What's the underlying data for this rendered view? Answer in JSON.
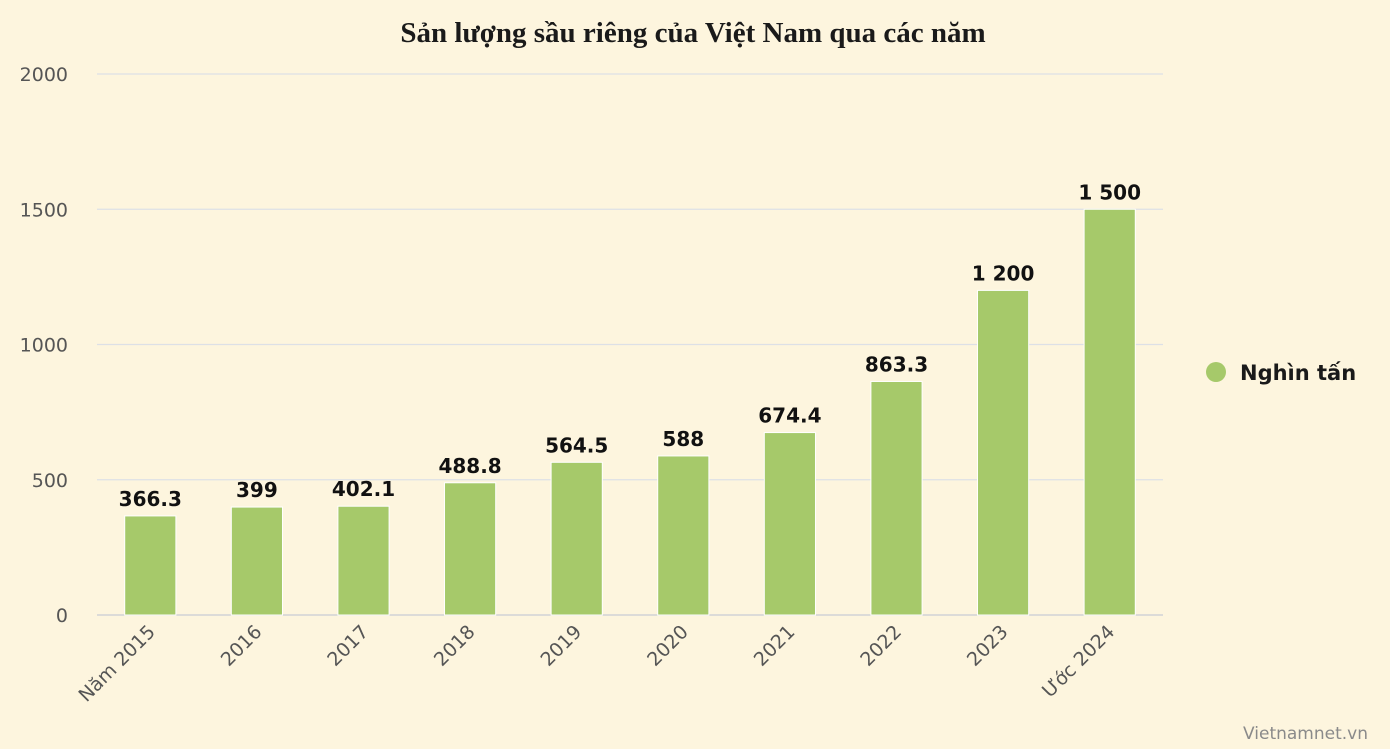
{
  "chart_data": {
    "type": "bar",
    "title": "Sản lượng sầu riêng của Việt Nam qua các năm",
    "categories": [
      "Năm 2015",
      "2016",
      "2017",
      "2018",
      "2019",
      "2020",
      "2021",
      "2022",
      "2023",
      "Ước 2024"
    ],
    "series": [
      {
        "name": "Nghìn tấn",
        "color": "#a6c96a",
        "values": [
          366.3,
          399,
          402.1,
          488.8,
          564.5,
          588,
          674.4,
          863.3,
          1200,
          1500
        ],
        "labels": [
          "366.3",
          "399",
          "402.1",
          "488.8",
          "564.5",
          "588",
          "674.4",
          "863.3",
          "1 200",
          "1 500"
        ]
      }
    ],
    "ylim": [
      0,
      2000
    ],
    "yticks": [
      0,
      500,
      1000,
      1500,
      2000
    ],
    "grid": true,
    "legend_position": "right"
  },
  "credit": "Vietnamnet.vn"
}
